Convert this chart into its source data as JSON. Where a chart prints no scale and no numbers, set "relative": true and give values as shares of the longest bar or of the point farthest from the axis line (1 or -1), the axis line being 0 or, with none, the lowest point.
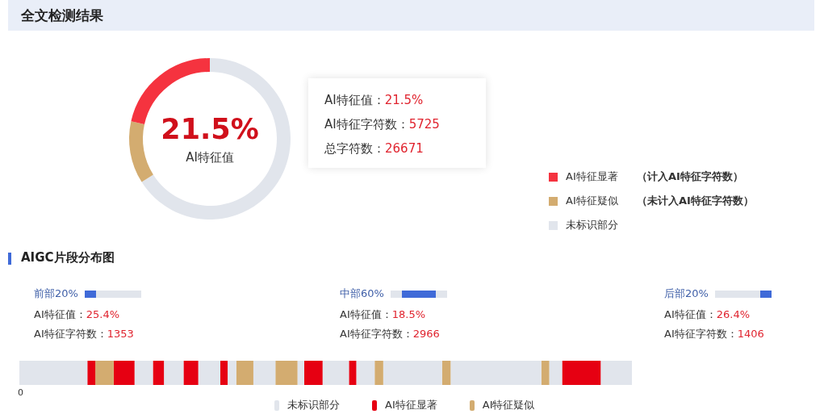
{
  "chart_data": [
    {
      "type": "donut",
      "title": "全文检测结果",
      "categories": [
        "AI特征显著",
        "AI特征疑似",
        "未标识部分"
      ],
      "values": [
        21.5,
        12.5,
        66
      ],
      "colors": [
        "#f5333f",
        "#d3ac70",
        "#e1e5ec"
      ],
      "legend": "right",
      "annotations": [
        "21.5%",
        "AI特征值",
        "AI特征值：21.5%",
        "AI特征字符数：5725",
        "总字符数：26671",
        "（计入AI特征字符数）",
        "（未计入AI特征字符数）"
      ]
    },
    {
      "type": "bar",
      "orientation": "horizontal",
      "stacked": true,
      "relative": true,
      "title": "AIGC片段分布图",
      "categories": [
        null
      ],
      "legend": "bottom",
      "annotations": [
        "前部20%",
        "AI特征值：25.4%",
        "AI特征字符数：1353",
        "中部60%",
        "AI特征值：18.5%",
        "AI特征字符数：2966",
        "后部20%",
        "AI特征值：26.4%",
        "AI特征字符数：1406",
        "0"
      ],
      "series": [
        {
          "name": "未标识部分",
          "color": "#e1e5ec",
          "values": [
            0.111
          ]
        },
        {
          "name": "AI特征显著",
          "color": "#e60012",
          "values": [
            0.013
          ]
        },
        {
          "name": "AI特征疑似",
          "color": "#d3ac70",
          "values": [
            0.03
          ]
        },
        {
          "color": "#e60012",
          "values": [
            0.034
          ]
        },
        {
          "color": "#e1e5ec",
          "values": [
            0.03
          ]
        },
        {
          "color": "#e60012",
          "values": [
            0.018
          ]
        },
        {
          "color": "#e1e5ec",
          "values": [
            0.032
          ]
        },
        {
          "color": "#e60012",
          "values": [
            0.024
          ]
        },
        {
          "color": "#e1e5ec",
          "values": [
            0.036
          ]
        },
        {
          "color": "#e60012",
          "values": [
            0.012
          ]
        },
        {
          "color": "#e1e5ec",
          "values": [
            0.014
          ]
        },
        {
          "color": "#d3ac70",
          "values": [
            0.028
          ]
        },
        {
          "color": "#e1e5ec",
          "values": [
            0.036
          ]
        },
        {
          "color": "#d3ac70",
          "values": [
            0.036
          ]
        },
        {
          "color": "#e1e5ec",
          "values": [
            0.011
          ]
        },
        {
          "color": "#e60012",
          "values": [
            0.03
          ]
        },
        {
          "color": "#e1e5ec",
          "values": [
            0.043
          ]
        },
        {
          "color": "#e60012",
          "values": [
            0.012
          ]
        },
        {
          "color": "#e1e5ec",
          "values": [
            0.03
          ]
        },
        {
          "color": "#d3ac70",
          "values": [
            0.014
          ]
        },
        {
          "color": "#e1e5ec",
          "values": [
            0.096
          ]
        },
        {
          "color": "#d3ac70",
          "values": [
            0.014
          ]
        },
        {
          "color": "#e1e5ec",
          "values": [
            0.148
          ]
        },
        {
          "color": "#d3ac70",
          "values": [
            0.013
          ]
        },
        {
          "color": "#e1e5ec",
          "values": [
            0.021
          ]
        },
        {
          "color": "#e60012",
          "values": [
            0.063
          ]
        },
        {
          "color": "#e1e5ec",
          "values": [
            0.051
          ]
        }
      ]
    }
  ]
}
